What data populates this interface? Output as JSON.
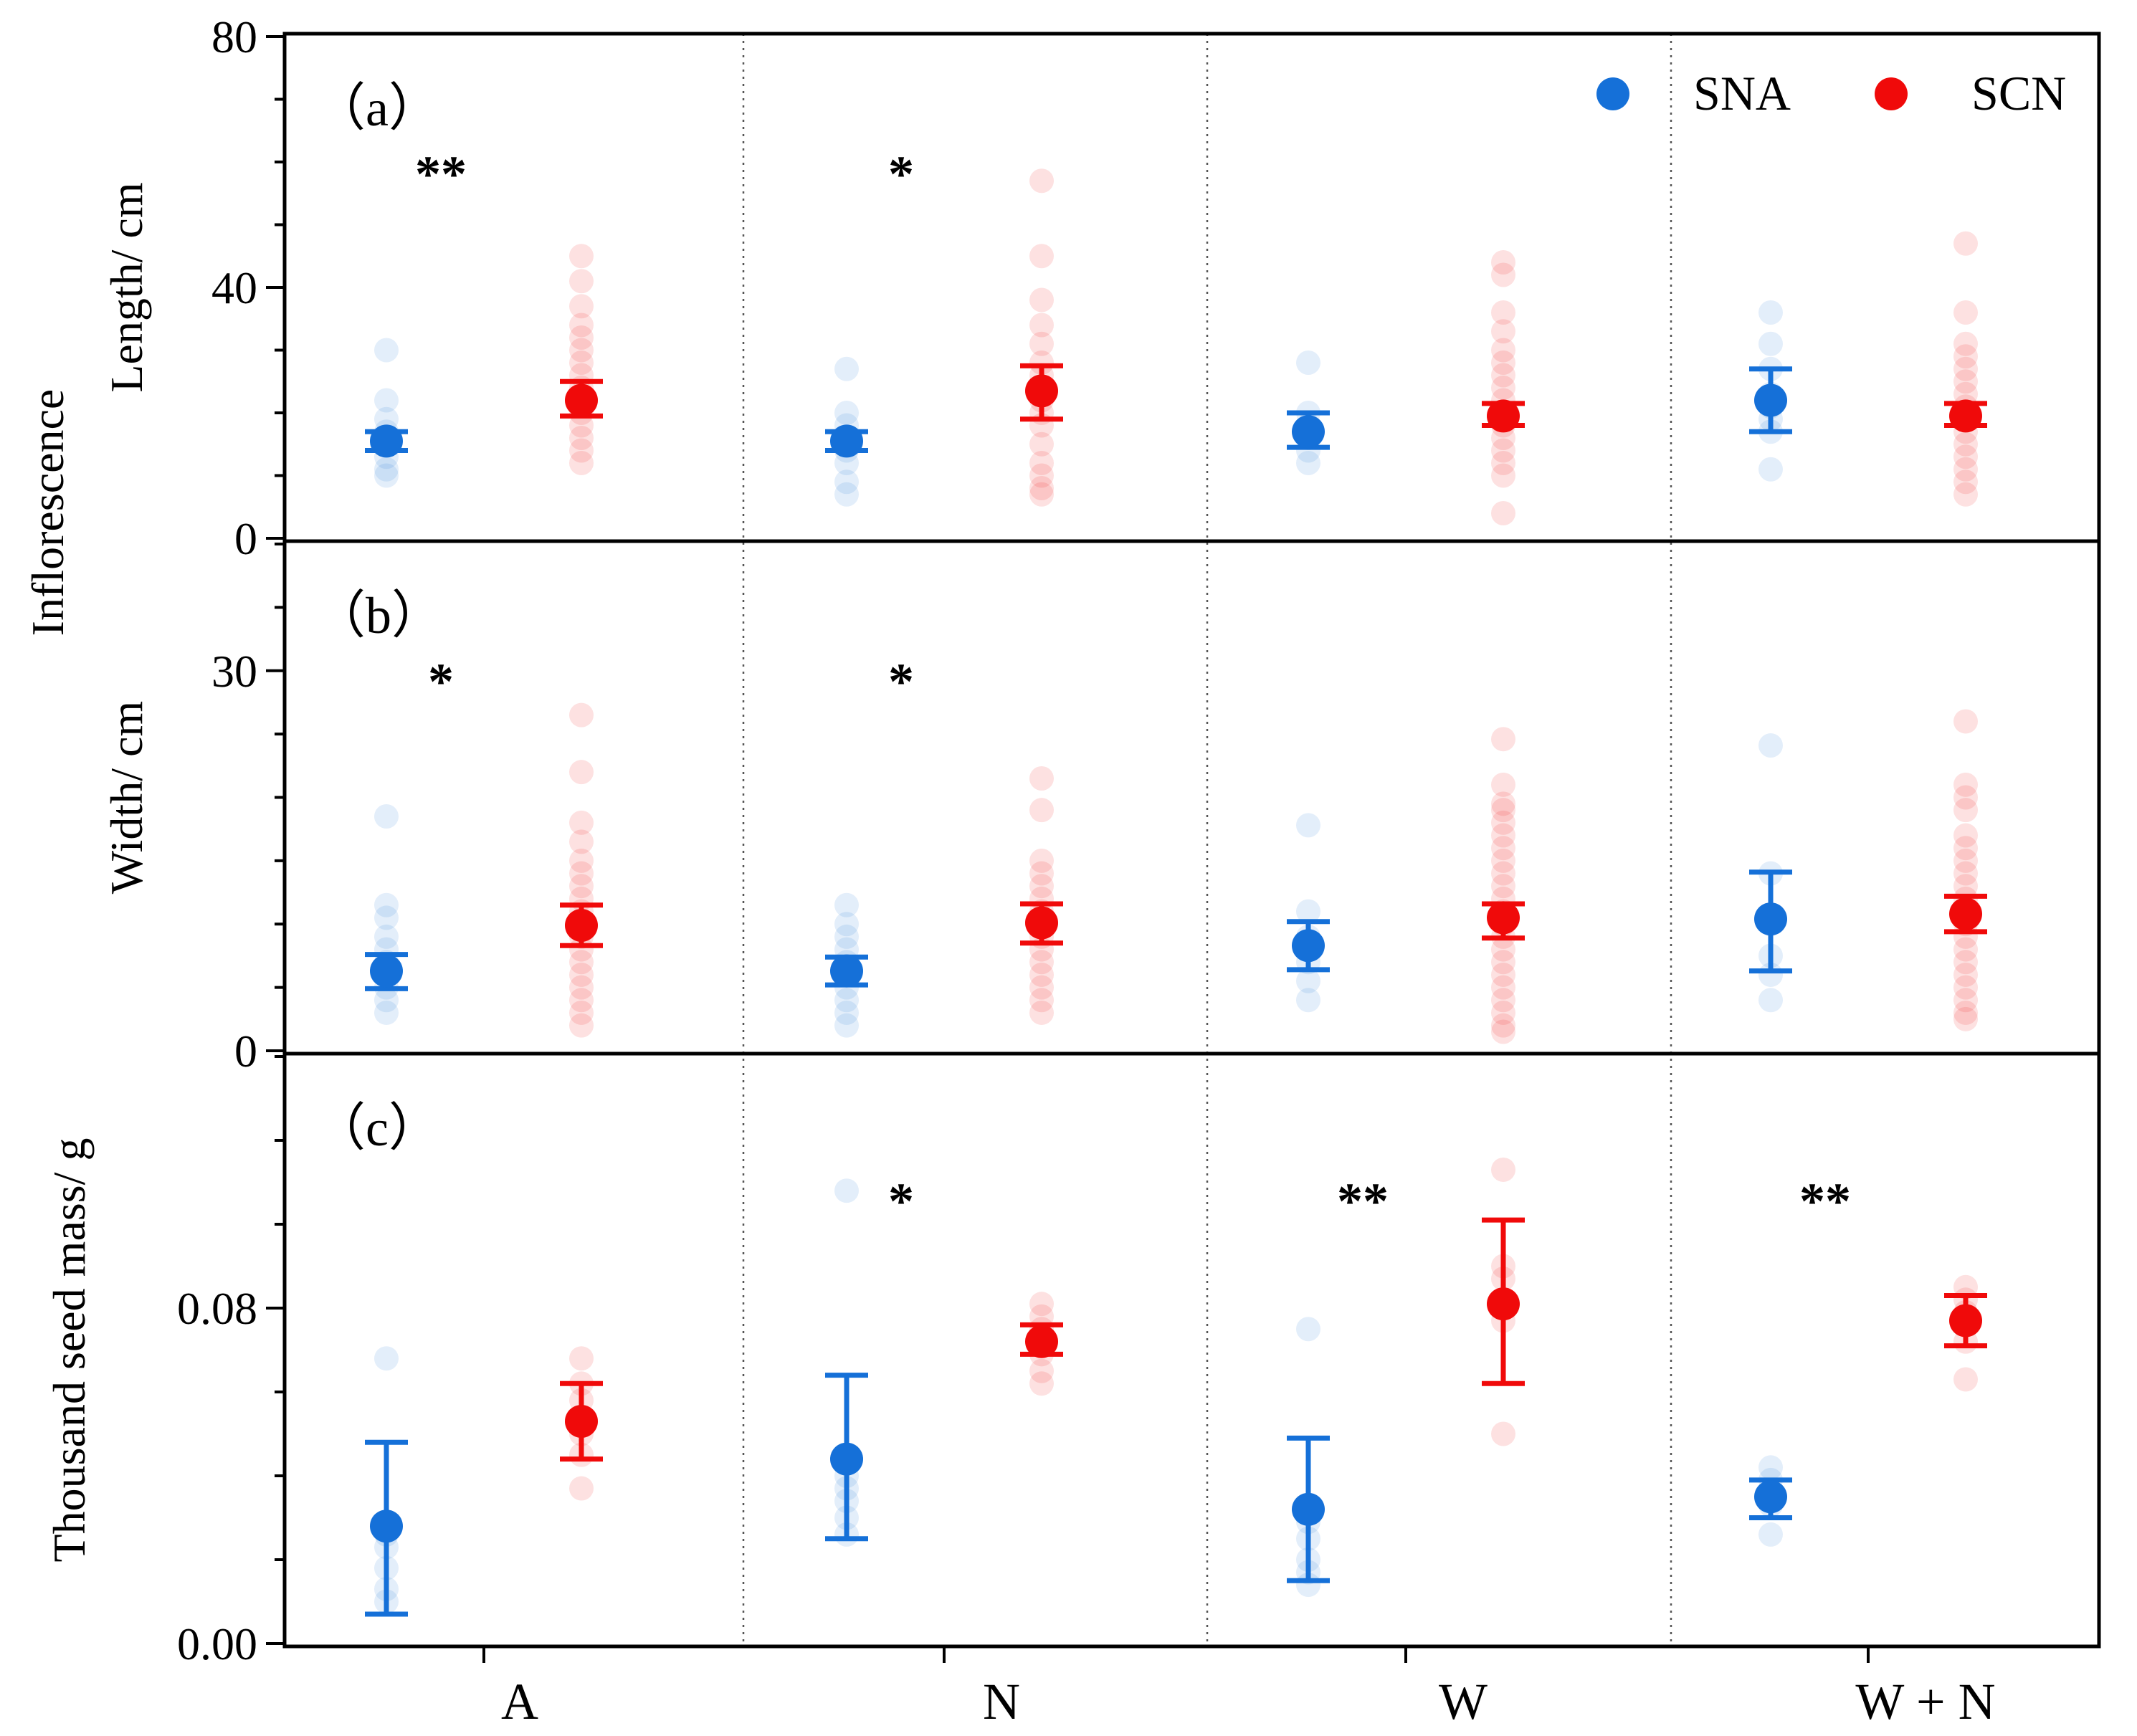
{
  "chart_data": {
    "type": "scatter",
    "legend": {
      "placement": "top-right",
      "entries": [
        {
          "name": "SNA",
          "color": "#1570d8"
        },
        {
          "name": "SCN",
          "color": "#f00a0a"
        }
      ]
    },
    "categories": [
      "A",
      "N",
      "W",
      "W + N"
    ],
    "shared_ylabel": "Inflorescence",
    "panels": [
      {
        "label": "（a）",
        "ylabel": "Length/ cm",
        "ylim": [
          0,
          80
        ],
        "ticks": [
          0,
          40,
          80
        ],
        "tick_labels": [
          "0",
          "40",
          "80"
        ],
        "minor_step": 10,
        "series": [
          {
            "name": "SNA",
            "means": [
              15.5,
              15.5,
              17,
              22
            ],
            "err_low": [
              14,
              14,
              14.5,
              17
            ],
            "err_high": [
              17,
              17,
              20,
              27
            ],
            "points": [
              [
                30,
                22,
                19,
                17,
                15,
                13,
                11,
                10
              ],
              [
                27,
                20,
                18,
                16,
                14,
                12,
                9,
                7
              ],
              [
                28,
                20,
                18,
                16,
                14,
                12
              ],
              [
                36,
                31,
                27,
                23,
                21,
                19,
                17,
                11
              ]
            ]
          },
          {
            "name": "SCN",
            "means": [
              22,
              23.5,
              19.5,
              19.5
            ],
            "err_low": [
              19.5,
              19,
              18,
              18
            ],
            "err_high": [
              25,
              27.5,
              21.5,
              21.5
            ],
            "points": [
              [
                45,
                41,
                37,
                34,
                32,
                30,
                28,
                26,
                24,
                22,
                20,
                18,
                16,
                14,
                12
              ],
              [
                57,
                45,
                38,
                34,
                31,
                28,
                26,
                24,
                22,
                20,
                18,
                15,
                12,
                10,
                8,
                7
              ],
              [
                44,
                42,
                36,
                33,
                30,
                28,
                26,
                24,
                22,
                20,
                18,
                16,
                14,
                12,
                10,
                4
              ],
              [
                47,
                36,
                31,
                29,
                27,
                25,
                23,
                21,
                19,
                17,
                15,
                13,
                11,
                9,
                7
              ]
            ]
          }
        ],
        "annotations": [
          "**",
          "*",
          "",
          ""
        ]
      },
      {
        "label": "（b）",
        "ylabel": "Width/ cm",
        "ylim": [
          0,
          40
        ],
        "ticks": [
          0,
          30
        ],
        "tick_labels": [
          "0",
          "30"
        ],
        "minor_step": 5,
        "series": [
          {
            "name": "SNA",
            "means": [
              6.3,
              6.3,
              8.3,
              10.4
            ],
            "err_low": [
              4.9,
              5.2,
              6.4,
              6.3
            ],
            "err_high": [
              7.6,
              7.4,
              10.2,
              14.1
            ],
            "points": [
              [
                18.5,
                11.5,
                10.5,
                9,
                8,
                7,
                6,
                5,
                4,
                3
              ],
              [
                11.5,
                10,
                9,
                8,
                7,
                6,
                5,
                4,
                3,
                2
              ],
              [
                17.8,
                11,
                9,
                7,
                5.5,
                4
              ],
              [
                24.1,
                14,
                10,
                7.5,
                6,
                4
              ]
            ]
          },
          {
            "name": "SCN",
            "means": [
              9.9,
              10.1,
              10.5,
              10.8
            ],
            "err_low": [
              8.3,
              8.5,
              8.9,
              9.4
            ],
            "err_high": [
              11.5,
              11.6,
              11.6,
              12.2
            ],
            "points": [
              [
                26.5,
                22,
                18,
                16.5,
                15,
                14,
                13,
                12,
                11,
                10,
                9,
                8,
                7,
                6,
                5,
                4,
                3,
                2
              ],
              [
                21.5,
                19,
                15,
                14,
                13,
                12,
                11,
                10,
                9,
                8,
                7,
                6,
                5,
                4,
                3
              ],
              [
                24.6,
                21,
                19.5,
                19,
                18,
                17,
                16,
                15,
                14,
                13,
                12,
                11,
                10,
                9,
                8,
                7,
                6,
                5,
                4,
                3,
                2,
                1.5
              ],
              [
                26,
                21,
                20,
                19,
                17,
                16,
                15,
                14,
                13,
                12,
                11,
                10,
                9,
                8,
                7,
                6,
                5,
                4,
                3,
                2.5
              ]
            ]
          }
        ],
        "annotations": [
          "*",
          "*",
          "",
          ""
        ]
      },
      {
        "label": "（c）",
        "ylabel": "Thousand seed mass/ g",
        "ylim": [
          0,
          0.14
        ],
        "ticks": [
          0,
          0.08
        ],
        "tick_labels": [
          "0.00",
          "0.08"
        ],
        "minor_step": 0.02,
        "series": [
          {
            "name": "SNA",
            "means": [
              0.028,
              0.044,
              0.032,
              0.035
            ],
            "err_low": [
              0.007,
              0.025,
              0.015,
              0.03
            ],
            "err_high": [
              0.048,
              0.064,
              0.049,
              0.039
            ],
            "points": [
              [
                0.068,
                0.029,
                0.026,
                0.023,
                0.018,
                0.013,
                0.01
              ],
              [
                0.108,
                0.04,
                0.037,
                0.034,
                0.03,
                0.026
              ],
              [
                0.075,
                0.029,
                0.025,
                0.02,
                0.017,
                0.014
              ],
              [
                0.042,
                0.039,
                0.036,
                0.033,
                0.026
              ]
            ]
          },
          {
            "name": "SCN",
            "means": [
              0.053,
              0.072,
              0.081,
              0.077
            ],
            "err_low": [
              0.044,
              0.069,
              0.062,
              0.071
            ],
            "err_high": [
              0.062,
              0.076,
              0.101,
              0.083
            ],
            "points": [
              [
                0.068,
                0.062,
                0.058,
                0.054,
                0.05,
                0.045,
                0.037
              ],
              [
                0.081,
                0.078,
                0.075,
                0.072,
                0.069,
                0.065,
                0.062
              ],
              [
                0.113,
                0.09,
                0.087,
                0.082,
                0.077,
                0.05
              ],
              [
                0.085,
                0.082,
                0.079,
                0.076,
                0.072,
                0.063
              ]
            ]
          }
        ],
        "annotations": [
          "",
          "*",
          "**",
          "**"
        ]
      }
    ]
  }
}
